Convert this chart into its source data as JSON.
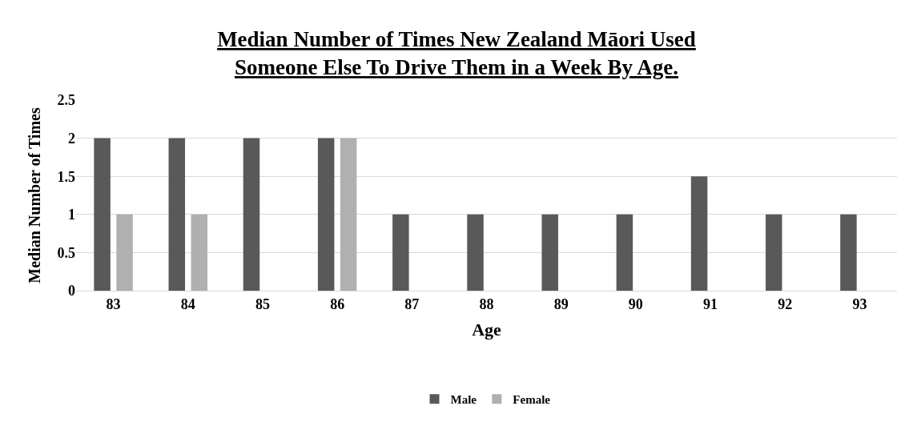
{
  "chart_data": {
    "type": "bar",
    "title": "Median Number of Times New Zealand Māori Used\nSomeone Else To Drive Them in a Week By Age.",
    "xlabel": "Age",
    "ylabel": "Median Number of Times",
    "categories": [
      "83",
      "84",
      "85",
      "86",
      "87",
      "88",
      "89",
      "90",
      "91",
      "92",
      "93"
    ],
    "series": [
      {
        "name": "Male",
        "color": "#595959",
        "values": [
          2,
          2,
          2,
          2,
          1,
          1,
          1,
          1,
          1.5,
          1,
          1
        ]
      },
      {
        "name": "Female",
        "color": "#b0b0b0",
        "values": [
          1,
          1,
          null,
          2,
          null,
          null,
          null,
          null,
          null,
          null,
          null
        ]
      }
    ],
    "ylim": [
      0,
      2.5
    ],
    "yticks": [
      0,
      0.5,
      1,
      1.5,
      2,
      2.5
    ],
    "grid": "y",
    "legend": "bottom"
  }
}
